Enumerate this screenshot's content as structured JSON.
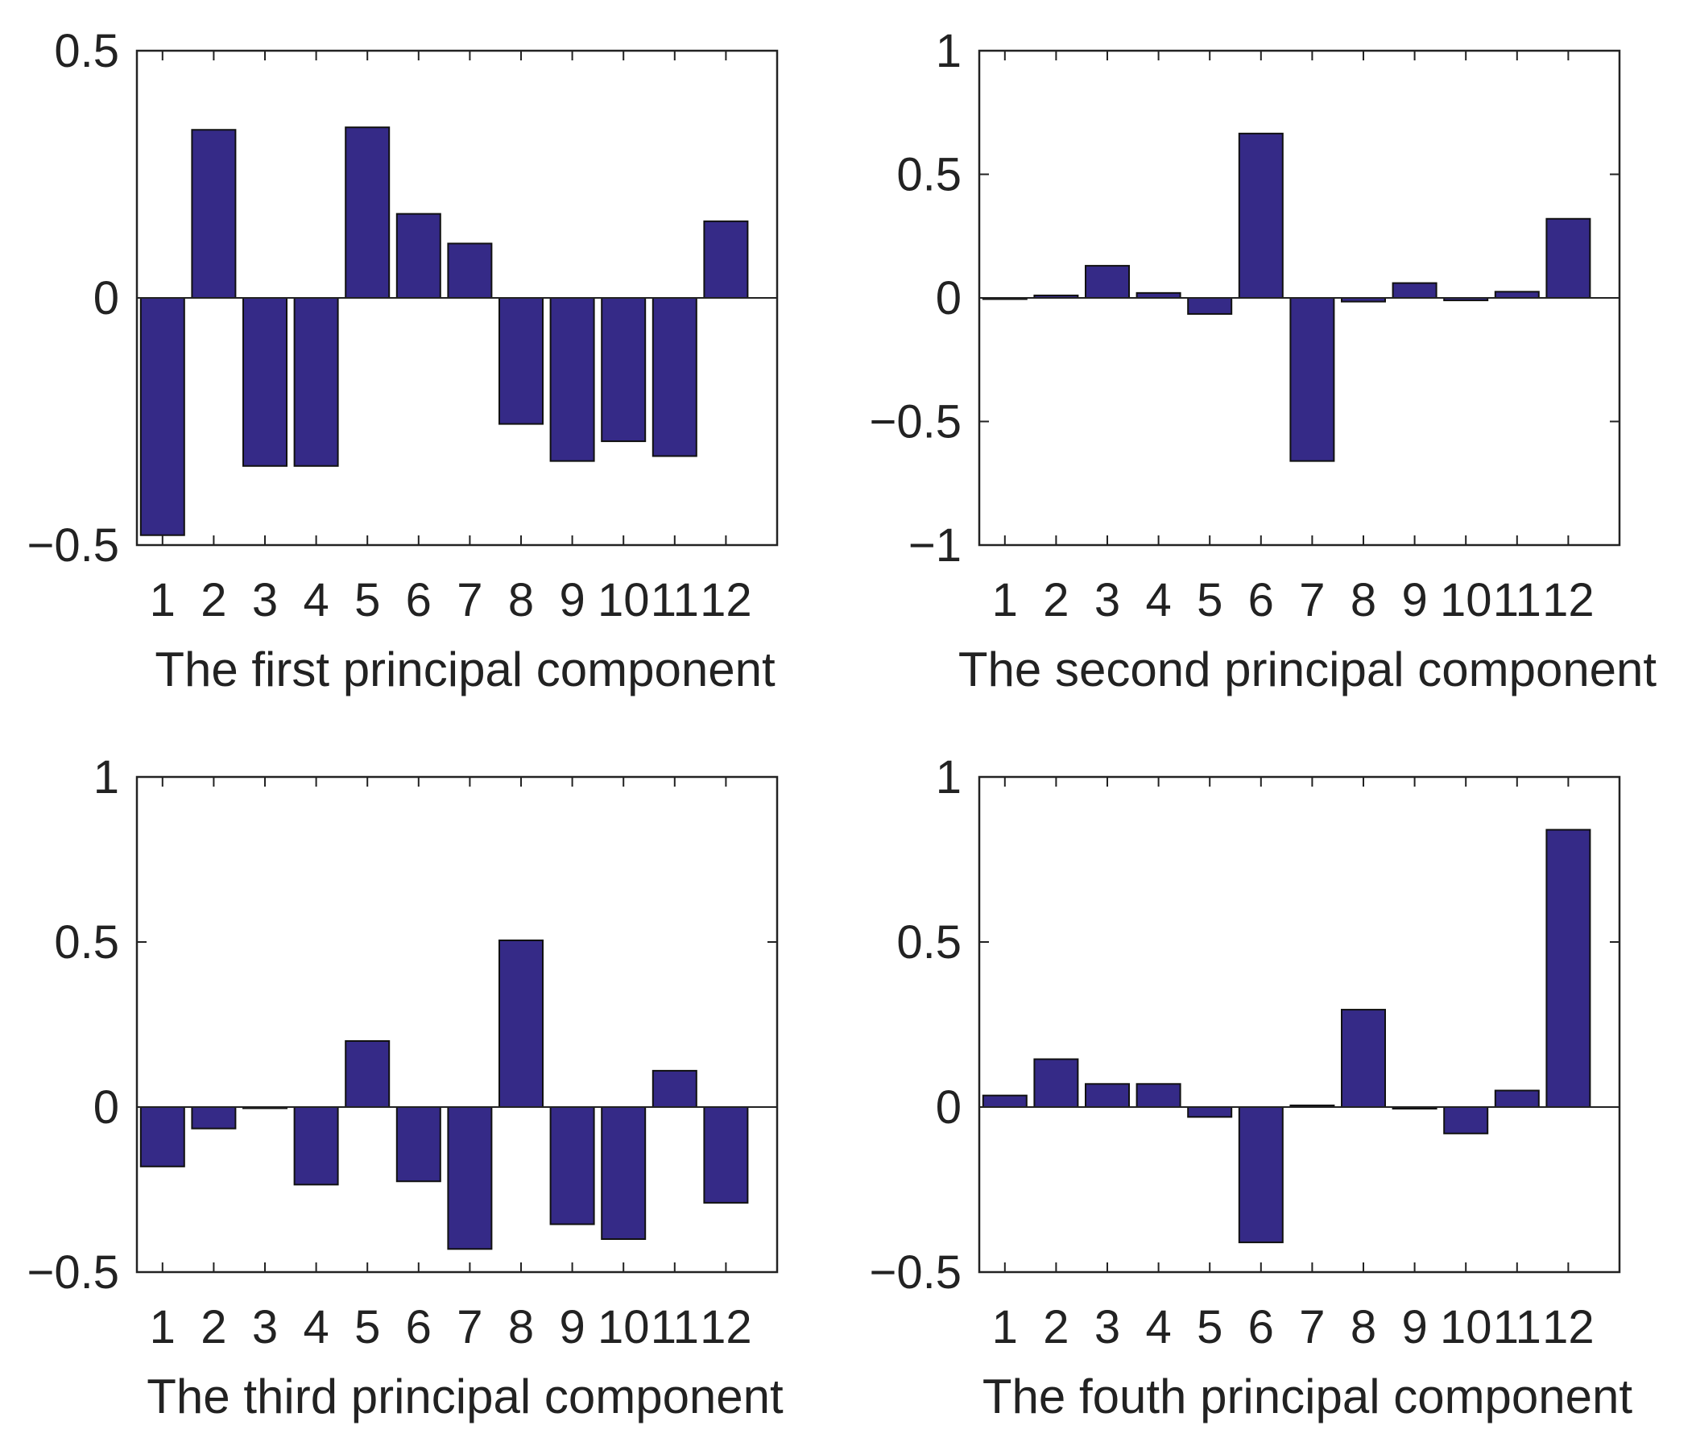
{
  "colors": {
    "bar": "#352a87",
    "axes": "#222222",
    "background": "#ffffff"
  },
  "chart_data": [
    {
      "type": "bar",
      "title": "",
      "xlabel": "The first principal component",
      "ylabel": "",
      "categories": [
        "1",
        "2",
        "3",
        "4",
        "5",
        "6",
        "7",
        "8",
        "9",
        "10",
        "11",
        "12"
      ],
      "values": [
        -0.48,
        0.34,
        -0.34,
        -0.34,
        0.345,
        0.17,
        0.11,
        -0.255,
        -0.33,
        -0.29,
        -0.32,
        0.155
      ],
      "ylim": [
        -0.5,
        0.5
      ],
      "yticks": [
        -0.5,
        0,
        0.5
      ],
      "ytick_labels": [
        "−0.5",
        "0",
        "0.5"
      ],
      "grid": false
    },
    {
      "type": "bar",
      "title": "",
      "xlabel": "The second principal component",
      "ylabel": "",
      "categories": [
        "1",
        "2",
        "3",
        "4",
        "5",
        "6",
        "7",
        "8",
        "9",
        "10",
        "11",
        "12"
      ],
      "values": [
        0.0,
        0.01,
        0.13,
        0.02,
        -0.065,
        0.665,
        -0.66,
        -0.015,
        0.06,
        -0.01,
        0.025,
        0.32
      ],
      "ylim": [
        -1,
        1
      ],
      "yticks": [
        -1,
        -0.5,
        0,
        0.5,
        1
      ],
      "ytick_labels": [
        "−1",
        "−0.5",
        "0",
        "0.5",
        "1"
      ],
      "grid": false
    },
    {
      "type": "bar",
      "title": "",
      "xlabel": "The third principal component",
      "ylabel": "",
      "categories": [
        "1",
        "2",
        "3",
        "4",
        "5",
        "6",
        "7",
        "8",
        "9",
        "10",
        "11",
        "12"
      ],
      "values": [
        -0.18,
        -0.065,
        0.0,
        -0.235,
        0.2,
        -0.225,
        -0.43,
        0.505,
        -0.355,
        -0.4,
        0.11,
        -0.29
      ],
      "ylim": [
        -0.5,
        1
      ],
      "yticks": [
        -0.5,
        0,
        0.5,
        1
      ],
      "ytick_labels": [
        "−0.5",
        "0",
        "0.5",
        "1"
      ],
      "grid": false
    },
    {
      "type": "bar",
      "title": "",
      "xlabel": "The fouth principal component",
      "ylabel": "",
      "categories": [
        "1",
        "2",
        "3",
        "4",
        "5",
        "6",
        "7",
        "8",
        "9",
        "10",
        "11",
        "12"
      ],
      "values": [
        0.035,
        0.145,
        0.07,
        0.07,
        -0.03,
        -0.41,
        0.005,
        0.295,
        -0.005,
        -0.08,
        0.05,
        0.84
      ],
      "ylim": [
        -0.5,
        1
      ],
      "yticks": [
        -0.5,
        0,
        0.5,
        1
      ],
      "ytick_labels": [
        "−0.5",
        "0",
        "0.5",
        "1"
      ],
      "grid": false
    }
  ]
}
